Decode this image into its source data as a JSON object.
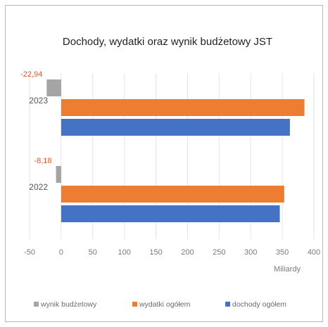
{
  "chart_data": {
    "type": "bar",
    "orientation": "horizontal",
    "title": "Dochody, wydatki oraz wynik budżetowy JST",
    "xlabel": "Miliardy",
    "ylabel": "",
    "xlim": [
      -50,
      400
    ],
    "xticks": [
      -50,
      0,
      50,
      100,
      150,
      200,
      250,
      300,
      350,
      400
    ],
    "categories": [
      "2023",
      "2022"
    ],
    "series": [
      {
        "name": "wynik budżetowy",
        "color": "#a5a5a5",
        "values": [
          -22.94,
          -8.18
        ],
        "data_labels": [
          "-22,94",
          "-8,18"
        ]
      },
      {
        "name": "wydatki ogółem",
        "color": "#ed7d31",
        "values": [
          385,
          353
        ]
      },
      {
        "name": "dochody ogółem",
        "color": "#4472c4",
        "values": [
          362,
          346
        ]
      }
    ],
    "label_color": "#e0542a",
    "grid": "vertical",
    "legend": "bottom"
  }
}
